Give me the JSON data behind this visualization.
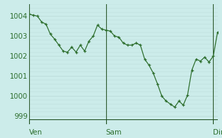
{
  "y_values": [
    1004.1,
    1004.05,
    1004.0,
    1003.7,
    1003.6,
    1003.1,
    1002.85,
    1002.55,
    1002.25,
    1002.2,
    1002.45,
    1002.2,
    1002.55,
    1002.25,
    1002.75,
    1003.0,
    1003.55,
    1003.35,
    1003.3,
    1003.25,
    1003.0,
    1002.95,
    1002.65,
    1002.55,
    1002.55,
    1002.65,
    1002.55,
    1001.85,
    1001.55,
    1001.15,
    1000.6,
    1000.0,
    999.75,
    999.6,
    999.45,
    999.75,
    999.55,
    1000.05,
    1001.3,
    1001.85,
    1001.75,
    1001.95,
    1001.7,
    1002.0,
    1003.2
  ],
  "ven_idx": 0,
  "sam_idx": 18,
  "dim_idx": 43,
  "ylim_min": 998.8,
  "ylim_max": 1004.6,
  "yticks": [
    999,
    1000,
    1001,
    1002,
    1003,
    1004
  ],
  "line_color": "#2d6e2d",
  "marker_color": "#2d6e2d",
  "bg_color": "#ccecea",
  "grid_color_minor": "#b8d8d5",
  "grid_color_major": "#a0c4c0",
  "tick_label_color": "#2d6e2d",
  "day_label_color": "#2d6e2d",
  "vline_color": "#2d5a2d",
  "border_color": "#1a4a1a",
  "label_fontsize": 7.5,
  "ytick_fontsize": 7.5
}
